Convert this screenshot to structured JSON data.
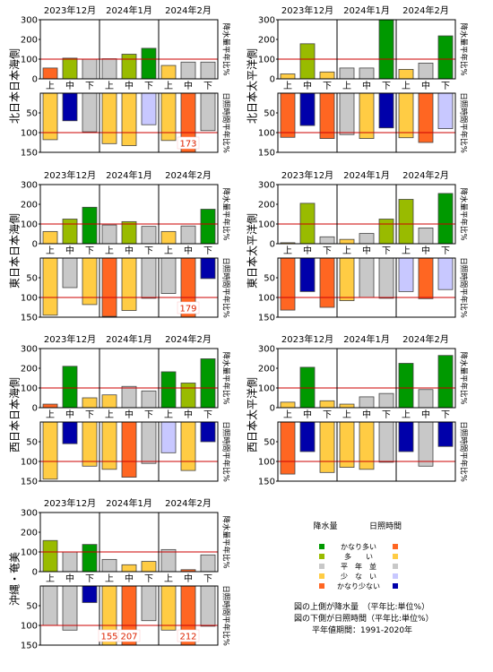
{
  "months": [
    "2023年12月",
    "2024年1月",
    "2024年2月"
  ],
  "dekads": [
    "上",
    "中",
    "下"
  ],
  "precip_axis": {
    "ylim": [
      0,
      300
    ],
    "ticks": [
      "0",
      "100",
      "200",
      "300"
    ],
    "label": "降水量平年比%"
  },
  "sun_axis": {
    "ylim": [
      0,
      150
    ],
    "ticks": [
      "50",
      "100",
      "150"
    ],
    "label": "日照時間平年比%"
  },
  "colors": {
    "precip": {
      "much_more": "#009900",
      "more": "#99bb00",
      "normal": "#c8c8c8",
      "less": "#ffcc44",
      "much_less": "#ff6622"
    },
    "sun": {
      "much_more": "#ff6622",
      "more": "#ffcc44",
      "normal": "#c8c8c8",
      "less": "#c8c8ff",
      "much_less": "#0000aa"
    },
    "reference_line": "#cc0000"
  },
  "chart_data": [
    {
      "type": "bar",
      "region": "北日本日本海側",
      "precip": {
        "values": [
          55,
          105,
          100,
          102,
          125,
          155,
          68,
          85,
          85
        ],
        "classes": [
          "much_less",
          "more",
          "normal",
          "normal",
          "more",
          "much_more",
          "less",
          "normal",
          "normal"
        ]
      },
      "sunshine": {
        "values": [
          118,
          70,
          98,
          128,
          133,
          80,
          120,
          173,
          95
        ],
        "classes": [
          "more",
          "much_less",
          "normal",
          "more",
          "more",
          "less",
          "more",
          "much_more",
          "normal"
        ],
        "overflow_labels": [
          "",
          "",
          "",
          "",
          "",
          "",
          "",
          "173",
          ""
        ]
      }
    },
    {
      "type": "bar",
      "region": "北日本太平洋側",
      "precip": {
        "values": [
          25,
          178,
          35,
          55,
          55,
          300,
          48,
          80,
          218
        ],
        "classes": [
          "less",
          "more",
          "less",
          "normal",
          "normal",
          "much_more",
          "less",
          "normal",
          "much_more"
        ]
      },
      "sunshine": {
        "values": [
          112,
          82,
          115,
          105,
          115,
          88,
          113,
          125,
          90
        ],
        "classes": [
          "much_more",
          "much_less",
          "much_more",
          "normal",
          "more",
          "much_less",
          "more",
          "much_more",
          "less"
        ],
        "overflow_labels": [
          "",
          "",
          "",
          "",
          "",
          "",
          "",
          "",
          ""
        ]
      }
    },
    {
      "type": "bar",
      "region": "東日本日本海側",
      "precip": {
        "values": [
          62,
          125,
          185,
          95,
          112,
          88,
          62,
          90,
          175
        ],
        "classes": [
          "less",
          "more",
          "much_more",
          "normal",
          "more",
          "normal",
          "less",
          "normal",
          "much_more"
        ]
      },
      "sunshine": {
        "values": [
          145,
          75,
          118,
          148,
          133,
          102,
          90,
          179,
          52
        ],
        "classes": [
          "more",
          "normal",
          "more",
          "much_more",
          "more",
          "normal",
          "normal",
          "much_more",
          "much_less"
        ],
        "overflow_labels": [
          "",
          "",
          "",
          "",
          "",
          "",
          "",
          "179",
          ""
        ]
      }
    },
    {
      "type": "bar",
      "region": "東日本太平洋側",
      "precip": {
        "values": [
          5,
          205,
          35,
          22,
          52,
          125,
          225,
          80,
          255
        ],
        "classes": [
          "less",
          "more",
          "normal",
          "less",
          "normal",
          "more",
          "more",
          "normal",
          "much_more"
        ]
      },
      "sunshine": {
        "values": [
          132,
          85,
          125,
          108,
          100,
          102,
          85,
          103,
          80
        ],
        "classes": [
          "much_more",
          "much_less",
          "much_more",
          "more",
          "normal",
          "normal",
          "less",
          "much_more",
          "less"
        ],
        "overflow_labels": [
          "",
          "",
          "",
          "",
          "",
          "",
          "",
          "",
          ""
        ]
      }
    },
    {
      "type": "bar",
      "region": "西日本日本海側",
      "precip": {
        "values": [
          18,
          210,
          50,
          65,
          108,
          85,
          182,
          125,
          248
        ],
        "classes": [
          "much_less",
          "much_more",
          "less",
          "less",
          "normal",
          "normal",
          "much_more",
          "more",
          "much_more"
        ]
      },
      "sunshine": {
        "values": [
          145,
          55,
          112,
          120,
          140,
          105,
          78,
          123,
          50
        ],
        "classes": [
          "more",
          "much_less",
          "more",
          "more",
          "much_more",
          "normal",
          "less",
          "more",
          "much_less"
        ],
        "overflow_labels": [
          "",
          "",
          "",
          "",
          "",
          "",
          "",
          "",
          ""
        ]
      }
    },
    {
      "type": "bar",
      "region": "西日本太平洋側",
      "precip": {
        "values": [
          28,
          205,
          35,
          18,
          55,
          72,
          225,
          92,
          265
        ],
        "classes": [
          "less",
          "much_more",
          "less",
          "less",
          "normal",
          "normal",
          "much_more",
          "normal",
          "much_more"
        ]
      },
      "sunshine": {
        "values": [
          132,
          75,
          128,
          115,
          120,
          102,
          75,
          112,
          62
        ],
        "classes": [
          "much_more",
          "much_less",
          "more",
          "more",
          "more",
          "normal",
          "much_less",
          "normal",
          "much_less"
        ],
        "overflow_labels": [
          "",
          "",
          "",
          "",
          "",
          "",
          "",
          "",
          ""
        ]
      }
    },
    {
      "type": "bar",
      "region": "沖縄・奄美",
      "precip": {
        "values": [
          158,
          100,
          138,
          62,
          35,
          52,
          112,
          10,
          85
        ],
        "classes": [
          "more",
          "normal",
          "much_more",
          "normal",
          "less",
          "less",
          "normal",
          "much_less",
          "normal"
        ]
      },
      "sunshine": {
        "values": [
          100,
          112,
          42,
          155,
          207,
          88,
          112,
          212,
          102
        ],
        "classes": [
          "normal",
          "normal",
          "much_less",
          "more",
          "much_more",
          "normal",
          "more",
          "much_more",
          "normal"
        ],
        "overflow_labels": [
          "",
          "",
          "",
          "155",
          "207",
          "",
          "",
          "212",
          ""
        ]
      }
    }
  ],
  "legend": {
    "header_precip": "降水量",
    "header_sun": "日照時間",
    "rows": [
      {
        "label": "かなり多い",
        "key": "much_more"
      },
      {
        "label": "多　　い",
        "key": "more"
      },
      {
        "label": "平　年　並",
        "key": "normal"
      },
      {
        "label": "少　な　い",
        "key": "less"
      },
      {
        "label": "かなり少ない",
        "key": "much_less"
      }
    ]
  },
  "notes": [
    "図の上側が降水量　（平年比:単位%）",
    "図の下側が日照時間（平年比:単位%）",
    "平年値期間：1991-2020年"
  ]
}
